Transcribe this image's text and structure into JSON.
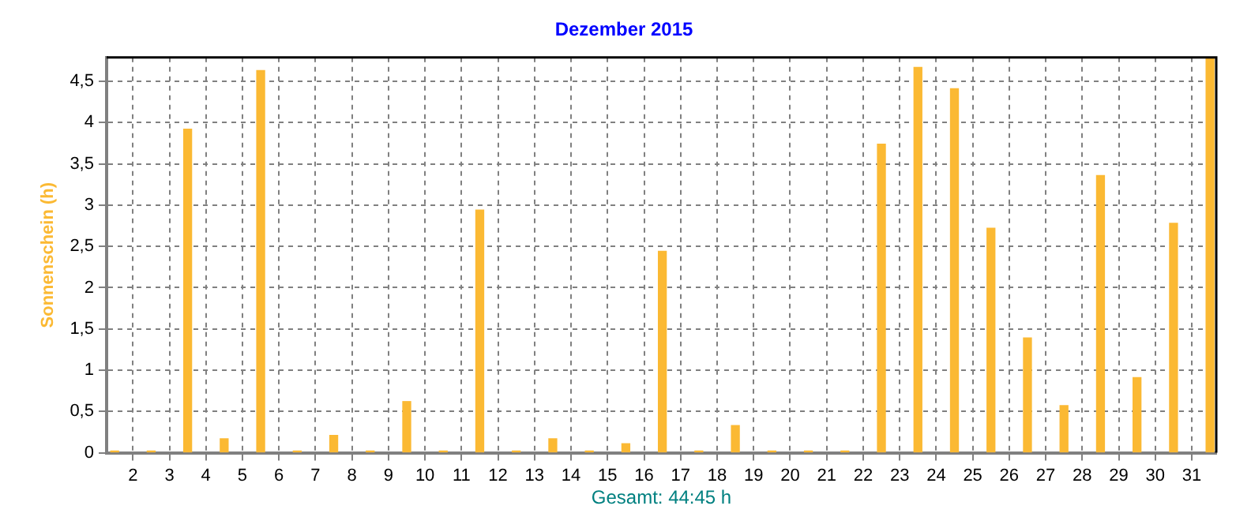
{
  "chart_data": {
    "type": "bar",
    "title": "Dezember 2015",
    "ylabel": "Sonnenschein (h)",
    "annotations": [
      "Gesamt: 44:45 h"
    ],
    "x": [
      1.5,
      2.5,
      3.5,
      4.5,
      5.5,
      6.5,
      7.5,
      8.5,
      9.5,
      10.5,
      11.5,
      12.5,
      13.5,
      14.5,
      15.5,
      16.5,
      17.5,
      18.5,
      19.5,
      20.5,
      21.5,
      22.5,
      23.5,
      24.5,
      25.5,
      26.5,
      27.5,
      28.5,
      29.5,
      30.5,
      31.5
    ],
    "values": [
      0.02,
      0.02,
      3.92,
      0.17,
      4.63,
      0.02,
      0.21,
      0.02,
      0.62,
      0.02,
      2.94,
      0.02,
      0.17,
      0.02,
      0.11,
      2.44,
      0.02,
      0.33,
      0.02,
      0.02,
      0.02,
      3.74,
      4.67,
      4.41,
      2.72,
      1.39,
      0.57,
      3.36,
      0.91,
      2.78,
      4.78
    ],
    "color": "#fbb933",
    "xlim": [
      1.28,
      31.67
    ],
    "xticks": [
      2,
      3,
      4,
      5,
      6,
      7,
      8,
      9,
      10,
      11,
      12,
      13,
      14,
      15,
      16,
      17,
      18,
      19,
      20,
      21,
      22,
      23,
      24,
      25,
      26,
      27,
      28,
      29,
      30,
      31
    ],
    "ylim": [
      0,
      4.79
    ],
    "yticks": [
      0,
      {
        "value": 0.5,
        "label": "0,5"
      },
      1,
      {
        "value": 1.5,
        "label": "1,5"
      },
      2,
      {
        "value": 2.5,
        "label": "2,5"
      },
      3,
      {
        "value": 3.5,
        "label": "3,5"
      },
      4,
      {
        "value": 4.5,
        "label": "4,5"
      }
    ],
    "grid": true,
    "legend": false
  }
}
